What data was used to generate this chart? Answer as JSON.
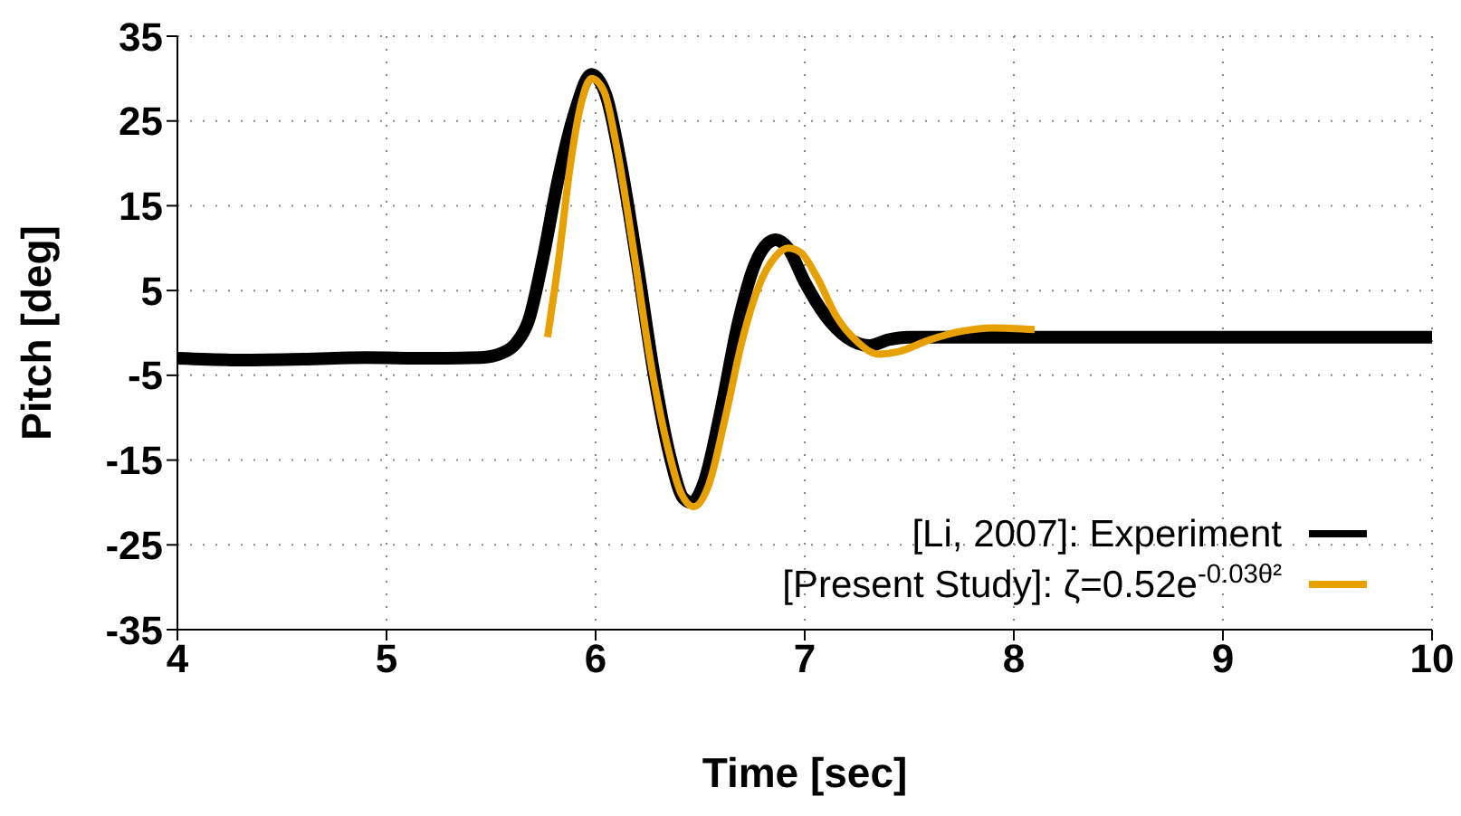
{
  "chart_data": {
    "type": "line",
    "xlabel": "Time [sec]",
    "ylabel": "Pitch [deg]",
    "xlim": [
      4,
      10
    ],
    "ylim": [
      -35,
      35
    ],
    "xticks": [
      4,
      5,
      6,
      7,
      8,
      9,
      10
    ],
    "yticks": [
      -35,
      -25,
      -15,
      -5,
      5,
      15,
      25,
      35
    ],
    "grid": true,
    "legend": "bottom right",
    "line_style": "solid",
    "marker": "none",
    "series": [
      {
        "name": "[Li, 2007]: Experiment",
        "color": "#000000",
        "x": [
          4,
          4.3,
          4.6,
          4.9,
          5.2,
          5.45,
          5.55,
          5.62,
          5.68,
          5.75,
          5.82,
          5.9,
          5.98,
          6.05,
          6.12,
          6.2,
          6.28,
          6.36,
          6.42,
          6.46,
          6.52,
          6.6,
          6.68,
          6.76,
          6.82,
          6.86,
          6.92,
          7.0,
          7.1,
          7.2,
          7.31,
          7.4,
          7.5,
          8,
          9,
          10
        ],
        "values": [
          -3,
          -3.2,
          -3.1,
          -2.9,
          -3,
          -2.9,
          -2.4,
          -1.2,
          1.5,
          9,
          18,
          26,
          30.5,
          28,
          20,
          8,
          -5,
          -15,
          -19.5,
          -20,
          -17.5,
          -9,
          1,
          8,
          10.5,
          11,
          10,
          6,
          2,
          -0.5,
          -1.5,
          -0.8,
          -0.5,
          -0.5,
          -0.5,
          -0.5
        ]
      },
      {
        "name": "[Present Study]: ζ=0.52e$^{-0.03θ²}$",
        "color": "#e6a000",
        "x": [
          5.77,
          5.82,
          5.88,
          5.93,
          5.98,
          6.04,
          6.1,
          6.18,
          6.26,
          6.34,
          6.41,
          6.47,
          6.54,
          6.62,
          6.7,
          6.78,
          6.86,
          6.92,
          6.98,
          7.06,
          7.15,
          7.25,
          7.35,
          7.45,
          7.6,
          7.75,
          7.9,
          8.1
        ],
        "values": [
          -0.5,
          8,
          20,
          27,
          30,
          28.5,
          22,
          10,
          -3,
          -13,
          -19,
          -20.5,
          -18,
          -10,
          -1,
          5.5,
          9,
          10,
          9.5,
          6.5,
          2,
          -1,
          -2.5,
          -2.2,
          -0.8,
          0.2,
          0.6,
          0.4
        ]
      }
    ]
  }
}
